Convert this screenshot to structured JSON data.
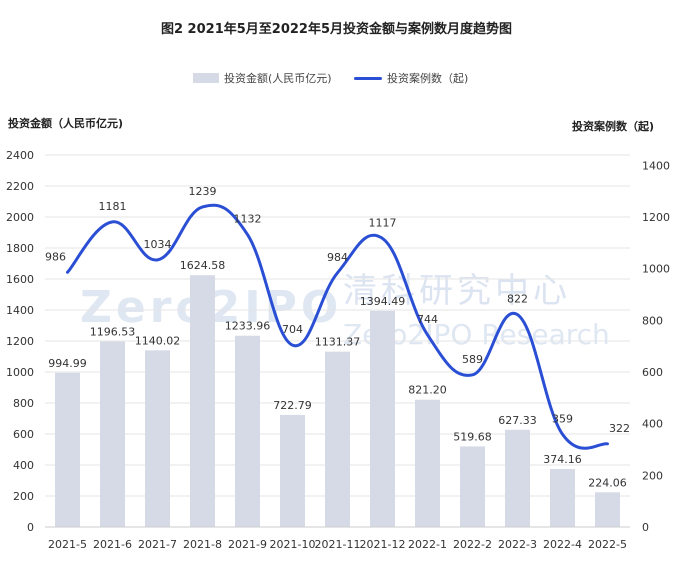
{
  "title": "图2  2021年5月至2022年5月投资金额与案例数月度趋势图",
  "legend": {
    "bar_label": "投资金额(人民币亿元)",
    "line_label": "投资案例数（起)"
  },
  "left_axis_title": "投资金额（人民币亿元)",
  "right_axis_title": "投资案例数（起)",
  "watermark": {
    "logo_text": "Zero2IPO",
    "cn_text": "清科研究中心",
    "en_text": "Zero2IPO Research"
  },
  "colors": {
    "bar": "#d5dae6",
    "line": "#2a4fd4",
    "grid": "#e6e6e6",
    "text": "#333333"
  },
  "chart_data": {
    "type": "bar",
    "categories": [
      "2021-5",
      "2021-6",
      "2021-7",
      "2021-8",
      "2021-9",
      "2021-10",
      "2021-11",
      "2021-12",
      "2022-1",
      "2022-2",
      "2022-3",
      "2022-4",
      "2022-5"
    ],
    "series": [
      {
        "name": "投资金额(人民币亿元)",
        "type": "bar",
        "axis": "left",
        "values": [
          994.99,
          1196.53,
          1140.02,
          1624.58,
          1233.96,
          722.79,
          1131.37,
          1394.49,
          821.2,
          519.68,
          627.33,
          374.16,
          224.06
        ],
        "labels": [
          "994.99",
          "1196.53",
          "1140.02",
          "1624.58",
          "1233.96",
          "722.79",
          "1131.37",
          "1394.49",
          "821.20",
          "519.68",
          "627.33",
          "374.16",
          "224.06"
        ]
      },
      {
        "name": "投资案例数（起)",
        "type": "line",
        "axis": "right",
        "values": [
          986,
          1181,
          1034,
          1239,
          1132,
          704,
          984,
          1117,
          744,
          589,
          822,
          359,
          322
        ],
        "labels": [
          "986",
          "1181",
          "1034",
          "1239",
          "1132",
          "704",
          "984",
          "1117",
          "744",
          "589",
          "822",
          "359",
          "322"
        ]
      }
    ],
    "ylim_left": [
      0,
      2400
    ],
    "yticks_left": [
      "0",
      "200",
      "400",
      "600",
      "800",
      "1000",
      "1200",
      "1400",
      "1600",
      "1800",
      "2000",
      "2200",
      "2400"
    ],
    "ylim_right": [
      0,
      1440
    ],
    "yticks_right": [
      "0",
      "200",
      "400",
      "600",
      "800",
      "1000",
      "1200",
      "1400"
    ],
    "grid": true,
    "legend_position": "top-center"
  }
}
